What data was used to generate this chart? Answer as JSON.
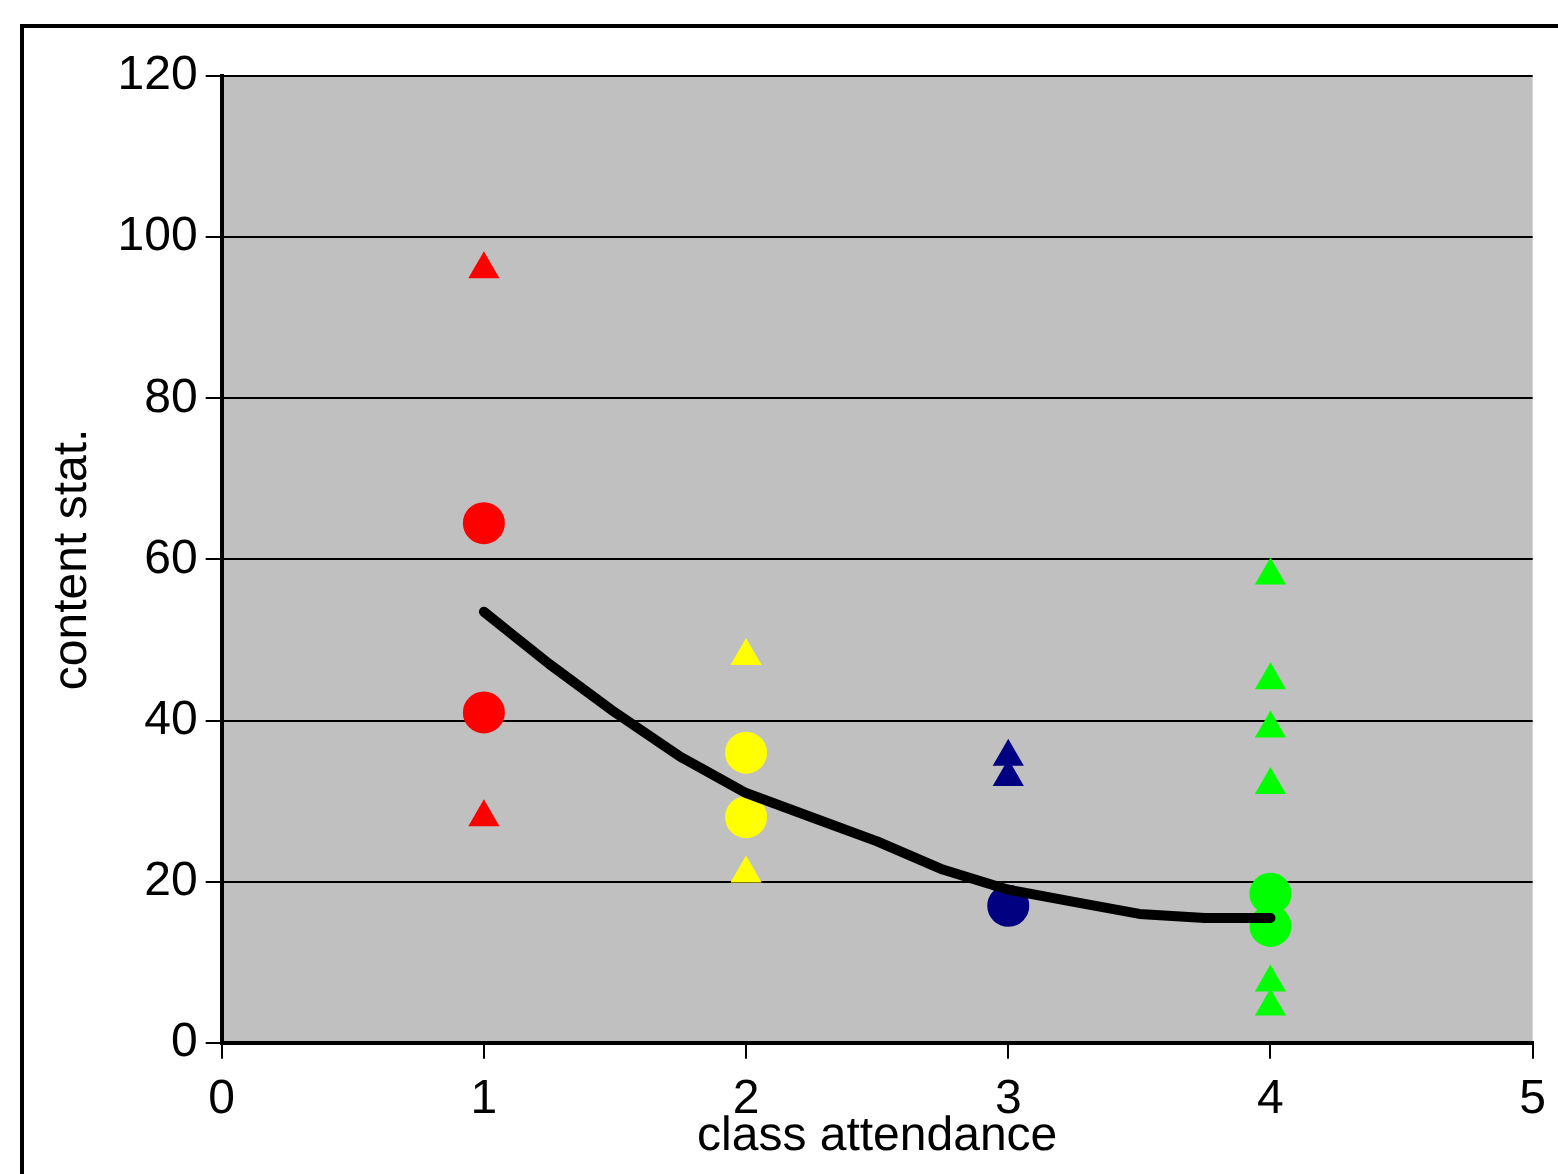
{
  "chart_data": {
    "type": "scatter",
    "xlabel": "class attendance",
    "ylabel": "content stat.",
    "xlim": [
      0,
      5
    ],
    "xticks": [
      0,
      1,
      2,
      3,
      4,
      5
    ],
    "ylim": [
      0,
      120
    ],
    "yticks": [
      0,
      20,
      40,
      60,
      80,
      100,
      120
    ],
    "grid": "y",
    "legend": false,
    "series": [
      {
        "color": "#ff0000",
        "marker": "circle",
        "x": [
          1,
          1
        ],
        "values": [
          64.5,
          41
        ]
      },
      {
        "color": "#ff0000",
        "marker": "triangle",
        "x": [
          1,
          1
        ],
        "values": [
          96,
          28
        ]
      },
      {
        "color": "#ffff00",
        "marker": "circle",
        "x": [
          2,
          2
        ],
        "values": [
          36,
          28
        ]
      },
      {
        "color": "#ffff00",
        "marker": "triangle",
        "x": [
          2,
          2
        ],
        "values": [
          48,
          21
        ]
      },
      {
        "color": "#000080",
        "marker": "circle",
        "x": [
          3
        ],
        "values": [
          17
        ]
      },
      {
        "color": "#000080",
        "marker": "triangle",
        "x": [
          3,
          3
        ],
        "values": [
          35.5,
          33
        ]
      },
      {
        "color": "#00ff00",
        "marker": "circle",
        "x": [
          4,
          4
        ],
        "values": [
          18.5,
          14.5
        ]
      },
      {
        "color": "#00ff00",
        "marker": "triangle",
        "x": [
          4,
          4,
          4,
          4,
          4,
          4
        ],
        "values": [
          58,
          45,
          39,
          32,
          7.5,
          4.5
        ]
      },
      {
        "type": "line",
        "color": "#000000",
        "marker": "none",
        "x": [
          1,
          1.25,
          1.5,
          1.75,
          2,
          2.25,
          2.5,
          2.75,
          3,
          3.25,
          3.5,
          3.75,
          4
        ],
        "values": [
          53.5,
          47,
          41,
          35.5,
          31,
          28,
          25,
          21.5,
          19,
          17.5,
          16,
          15.5,
          15.5
        ]
      }
    ]
  }
}
